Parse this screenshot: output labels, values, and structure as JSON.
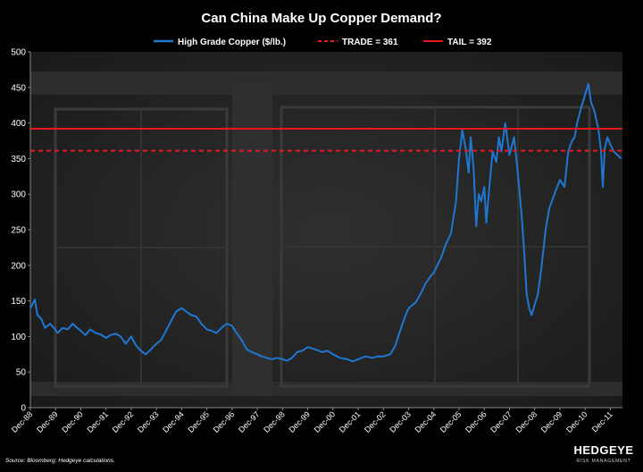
{
  "chart_data": {
    "type": "line",
    "title": "Can China Make Up Copper Demand?",
    "xlabel": "",
    "ylabel": "",
    "ylim": [
      0,
      500
    ],
    "yticks": [
      0,
      50,
      100,
      150,
      200,
      250,
      300,
      350,
      400,
      450,
      500
    ],
    "x_tick_labels": [
      "Dec-88",
      "Dec-89",
      "Dec-90",
      "Dec-91",
      "Dec-92",
      "Dec-93",
      "Dec-94",
      "Dec-95",
      "Dec-96",
      "Dec-97",
      "Dec-98",
      "Dec-99",
      "Dec-00",
      "Dec-01",
      "Dec-02",
      "Dec-03",
      "Dec-04",
      "Dec-05",
      "Dec-06",
      "Dec-07",
      "Dec-08",
      "Dec-09",
      "Dec-10",
      "Dec-11"
    ],
    "xlim": [
      1988.92,
      2012.4
    ],
    "legend_position": "top-center",
    "series": [
      {
        "name": "High Grade Copper ($/lb.)",
        "color": "#1f77d0",
        "style": "solid",
        "x": [
          1988.92,
          1989.1,
          1989.2,
          1989.35,
          1989.5,
          1989.7,
          1989.85,
          1990.0,
          1990.2,
          1990.4,
          1990.6,
          1990.75,
          1990.92,
          1991.1,
          1991.3,
          1991.5,
          1991.7,
          1991.92,
          1992.1,
          1992.3,
          1992.5,
          1992.7,
          1992.92,
          1993.1,
          1993.3,
          1993.5,
          1993.7,
          1993.92,
          1994.1,
          1994.3,
          1994.5,
          1994.7,
          1994.92,
          1995.1,
          1995.3,
          1995.5,
          1995.7,
          1995.92,
          1996.1,
          1996.3,
          1996.5,
          1996.7,
          1996.92,
          1997.1,
          1997.3,
          1997.5,
          1997.7,
          1997.92,
          1998.1,
          1998.3,
          1998.5,
          1998.7,
          1998.92,
          1999.1,
          1999.3,
          1999.5,
          1999.7,
          1999.92,
          2000.2,
          2000.5,
          2000.7,
          2000.92,
          2001.2,
          2001.5,
          2001.7,
          2001.92,
          2002.2,
          2002.5,
          2002.7,
          2002.92,
          2003.2,
          2003.4,
          2003.6,
          2003.8,
          2003.92,
          2004.2,
          2004.4,
          2004.6,
          2004.8,
          2004.92,
          2005.2,
          2005.4,
          2005.6,
          2005.8,
          2005.92,
          2006.05,
          2006.2,
          2006.3,
          2006.38,
          2006.5,
          2006.6,
          2006.7,
          2006.8,
          2006.92,
          2007.0,
          2007.1,
          2007.25,
          2007.4,
          2007.5,
          2007.6,
          2007.75,
          2007.92,
          2008.1,
          2008.25,
          2008.4,
          2008.5,
          2008.6,
          2008.7,
          2008.8,
          2008.92,
          2009.05,
          2009.2,
          2009.35,
          2009.5,
          2009.6,
          2009.75,
          2009.92,
          2010.1,
          2010.25,
          2010.4,
          2010.5,
          2010.6,
          2010.75,
          2010.92,
          2011.05,
          2011.15,
          2011.3,
          2011.45,
          2011.55,
          2011.62,
          2011.7,
          2011.8,
          2011.92,
          2012.05,
          2012.2,
          2012.35
        ],
        "values": [
          140,
          152,
          130,
          125,
          112,
          118,
          112,
          105,
          112,
          110,
          118,
          113,
          108,
          102,
          110,
          105,
          103,
          98,
          102,
          104,
          100,
          90,
          100,
          88,
          80,
          75,
          82,
          90,
          95,
          108,
          122,
          135,
          140,
          135,
          130,
          128,
          118,
          110,
          108,
          105,
          112,
          118,
          115,
          105,
          95,
          82,
          78,
          75,
          72,
          70,
          68,
          70,
          68,
          66,
          70,
          78,
          80,
          85,
          82,
          78,
          80,
          75,
          70,
          68,
          65,
          68,
          72,
          70,
          72,
          72,
          75,
          88,
          110,
          130,
          140,
          148,
          160,
          175,
          185,
          190,
          210,
          230,
          245,
          290,
          350,
          390,
          360,
          330,
          380,
          335,
          255,
          300,
          290,
          310,
          260,
          300,
          360,
          345,
          380,
          360,
          400,
          355,
          380,
          330,
          270,
          220,
          160,
          140,
          130,
          145,
          160,
          200,
          250,
          280,
          290,
          305,
          320,
          310,
          360,
          375,
          380,
          400,
          420,
          440,
          455,
          430,
          415,
          390,
          360,
          310,
          365,
          380,
          370,
          360,
          355,
          350
        ]
      },
      {
        "name": "TRADE = 361",
        "color": "#e8191e",
        "style": "dashed",
        "constant": 361
      },
      {
        "name": "TAIL = 392",
        "color": "#e8191e",
        "style": "solid",
        "constant": 392
      }
    ]
  },
  "footer": {
    "source": "Source: Bloomberg;  Hedgeye calculations.",
    "logo_text": "HEDGEYE",
    "logo_sub": "RISK MANAGEMENT"
  },
  "colors": {
    "background": "#000000",
    "plot_background": "#262626",
    "text": "#ffffff"
  }
}
